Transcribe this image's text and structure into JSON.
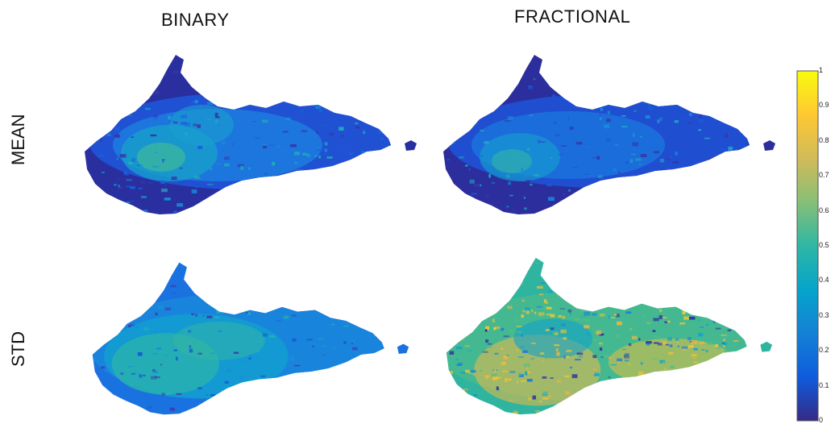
{
  "columns": {
    "binary": "BINARY",
    "fractional": "FRACTIONAL"
  },
  "rows": {
    "mean": "MEAN",
    "std": "STD"
  },
  "colorbar": {
    "ticks": [
      "1",
      "0.9",
      "0.8",
      "0.7",
      "0.6",
      "0.5",
      "0.4",
      "0.3",
      "0.2",
      "0.1",
      "0"
    ],
    "colors": [
      "#352a87",
      "#0f5cdd",
      "#1481d6",
      "#06a4ca",
      "#2eb7a4",
      "#87bf77",
      "#d1bb59",
      "#fec832",
      "#f9fb0e"
    ]
  }
}
